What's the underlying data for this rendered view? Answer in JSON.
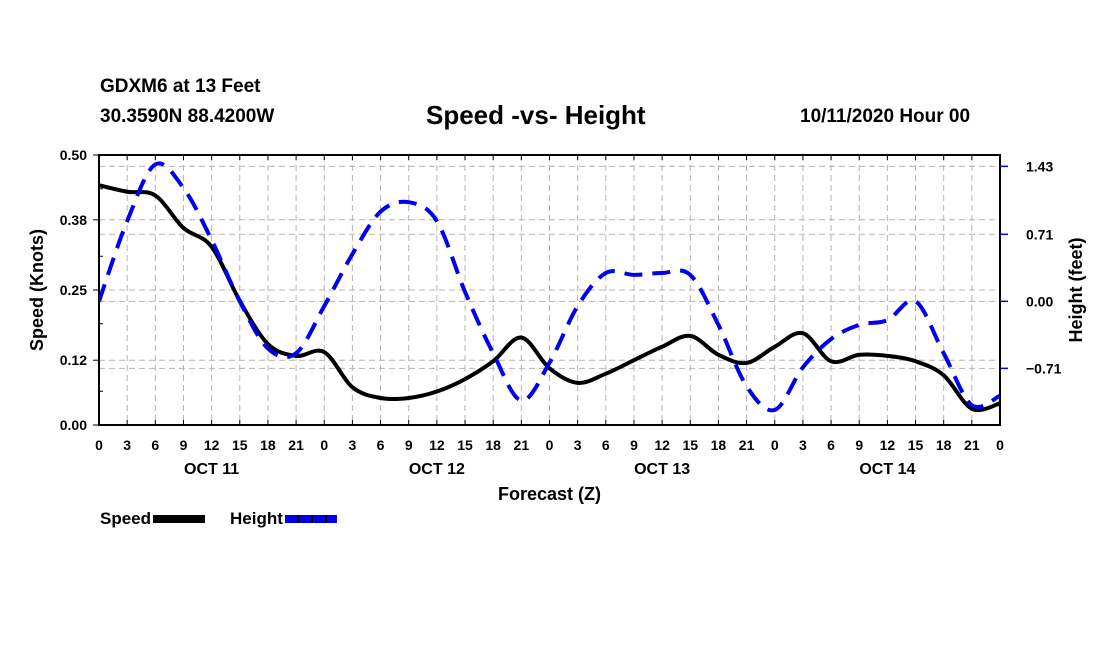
{
  "header": {
    "station": "GDXM6 at 13 Feet",
    "coords": "30.3590N 88.4200W",
    "title": "Speed -vs- Height",
    "datetime": "10/11/2020 Hour 00"
  },
  "legend": [
    {
      "label": "Speed",
      "color": "#000000",
      "style": "solid"
    },
    {
      "label": "Height",
      "color": "#0000ee",
      "style": "dashed"
    }
  ],
  "chart_data": {
    "type": "line",
    "title": "Speed -vs- Height",
    "xlabel": "Forecast (Z)",
    "ylabel": "Speed (Knots)",
    "y2label": "Height (feet)",
    "values_are_estimates": true,
    "estimate_note": "No data labels on the curves; series values are eyeballed from the rendered lines and converted with the axis tick mapping. Approx precision: speed ±0.01 kt, height ±0.05 ft.",
    "x_unit": "forecast hour",
    "xlim": [
      0,
      96
    ],
    "x_ticks": [
      0,
      3,
      6,
      9,
      12,
      15,
      18,
      21,
      24,
      27,
      30,
      33,
      36,
      39,
      42,
      45,
      48,
      51,
      54,
      57,
      60,
      63,
      66,
      69,
      72,
      75,
      78,
      81,
      84,
      87,
      90,
      93,
      96
    ],
    "x_tick_labels": [
      "0",
      "3",
      "6",
      "9",
      "12",
      "15",
      "18",
      "21",
      "0",
      "3",
      "6",
      "9",
      "12",
      "15",
      "18",
      "21",
      "0",
      "3",
      "6",
      "9",
      "12",
      "15",
      "18",
      "21",
      "0",
      "3",
      "6",
      "9",
      "12",
      "15",
      "18",
      "21",
      "0"
    ],
    "day_labels": [
      {
        "label": "OCT 11",
        "hour": 12
      },
      {
        "label": "OCT 12",
        "hour": 36
      },
      {
        "label": "OCT 13",
        "hour": 60
      },
      {
        "label": "OCT 14",
        "hour": 84
      }
    ],
    "ylim": [
      0,
      0.5
    ],
    "y_ticks": [
      0.0,
      0.12,
      0.25,
      0.38,
      0.5
    ],
    "y_tick_labels": [
      "0.00",
      "0.12",
      "0.25",
      "0.38",
      "0.50"
    ],
    "y2lim": [
      -1.31,
      1.55
    ],
    "y2_ticks": [
      -0.71,
      0.0,
      0.71,
      1.43
    ],
    "y2_tick_labels": [
      "-0.71",
      "0.00",
      "0.71",
      "1.43"
    ],
    "grid": true,
    "legend_position": "bottom-left",
    "x": [
      0,
      3,
      6,
      9,
      12,
      15,
      18,
      21,
      24,
      27,
      30,
      33,
      36,
      39,
      42,
      45,
      48,
      51,
      54,
      57,
      60,
      63,
      66,
      69,
      72,
      75,
      78,
      81,
      84,
      87,
      90,
      93,
      96
    ],
    "series": [
      {
        "name": "Speed",
        "axis": "left",
        "color": "#000000",
        "style": "solid",
        "values": [
          0.444,
          0.432,
          0.425,
          0.365,
          0.33,
          0.23,
          0.15,
          0.128,
          0.135,
          0.07,
          0.05,
          0.05,
          0.062,
          0.085,
          0.118,
          0.162,
          0.105,
          0.078,
          0.095,
          0.12,
          0.145,
          0.165,
          0.13,
          0.115,
          0.145,
          0.17,
          0.118,
          0.13,
          0.128,
          0.118,
          0.092,
          0.03,
          0.04
        ]
      },
      {
        "name": "Height",
        "axis": "right",
        "color": "#0000ee",
        "style": "dashed",
        "values": [
          0.0,
          0.85,
          1.45,
          1.2,
          0.65,
          0.0,
          -0.5,
          -0.55,
          -0.05,
          0.5,
          0.95,
          1.05,
          0.85,
          0.1,
          -0.55,
          -1.05,
          -0.65,
          -0.05,
          0.3,
          0.28,
          0.3,
          0.28,
          -0.25,
          -0.9,
          -1.15,
          -0.7,
          -0.4,
          -0.25,
          -0.2,
          0.0,
          -0.55,
          -1.1,
          -1.0
        ]
      }
    ]
  }
}
